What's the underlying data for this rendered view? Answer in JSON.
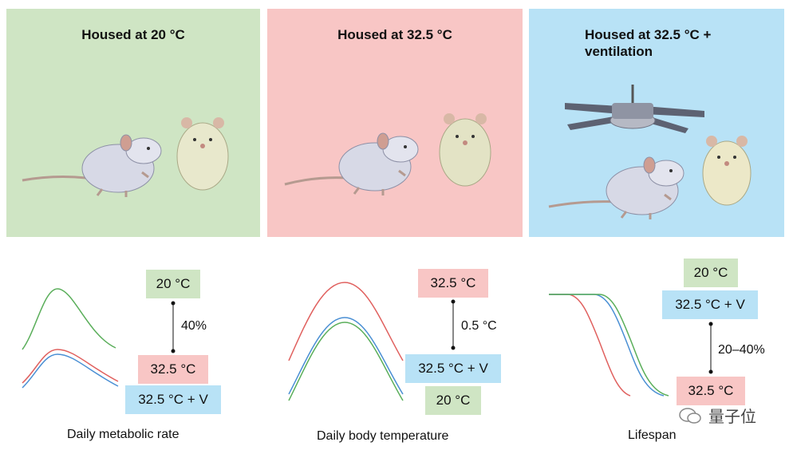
{
  "panels": [
    {
      "title": "Housed at 20 °C",
      "bg": "#cfe5c4"
    },
    {
      "title": "Housed at 32.5 °C",
      "bg": "#f8c6c5"
    },
    {
      "title": "Housed at 32.5 °C + ventilation",
      "bg": "#b8e2f6"
    }
  ],
  "colors": {
    "green": "#cfe5c4",
    "pink": "#f8c6c5",
    "blue": "#b8e2f6",
    "line_green": "#5aae5a",
    "line_red": "#e0605e",
    "line_blue": "#4a8fd4"
  },
  "metabolic": {
    "caption": "Daily metabolic rate",
    "box_top": "20 °C",
    "box_mid": "32.5 °C",
    "box_bot": "32.5 °C + V",
    "diff": "40%"
  },
  "temperature": {
    "caption": "Daily body temperature",
    "box_top": "32.5 °C",
    "box_mid": "32.5 °C + V",
    "box_bot": "20 °C",
    "diff": "0.5 °C"
  },
  "lifespan": {
    "caption": "Lifespan",
    "box_top": "20 °C",
    "box_mid": "32.5 °C + V",
    "box_bot": "32.5 °C",
    "diff": "20–40%"
  },
  "watermark": "量子位"
}
